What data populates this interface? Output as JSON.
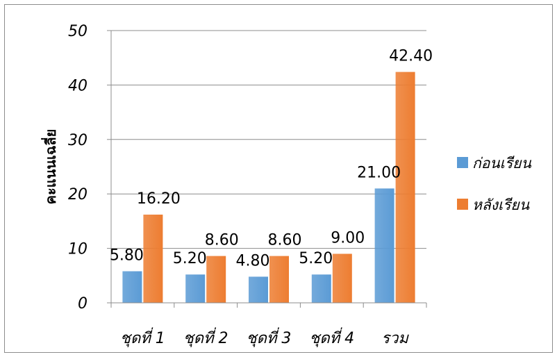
{
  "chart_data": {
    "type": "bar",
    "categories": [
      "ชุดที่ 1",
      "ชุดที่ 2",
      "ชุดที่ 3",
      "ชุดที่ 4",
      "รวม"
    ],
    "series": [
      {
        "name": "ก่อนเรียน",
        "values": [
          5.8,
          5.2,
          4.8,
          5.2,
          21.0
        ],
        "labels": [
          "5.80",
          "5.20",
          "4.80",
          "5.20",
          "21.00"
        ],
        "color": "#5b9bd5"
      },
      {
        "name": "หลังเรียน",
        "values": [
          16.2,
          8.6,
          8.6,
          9.0,
          42.4
        ],
        "labels": [
          "16.20",
          "8.60",
          "8.60",
          "9.00",
          "42.40"
        ],
        "color": "#ed7d31"
      }
    ],
    "title": "",
    "xlabel": "",
    "ylabel": "คะแนนเฉลี่ย",
    "ylim": [
      0,
      50
    ],
    "yticks": [
      "0",
      "10",
      "20",
      "30",
      "40",
      "50"
    ],
    "grid": true,
    "legend_position": "right"
  }
}
